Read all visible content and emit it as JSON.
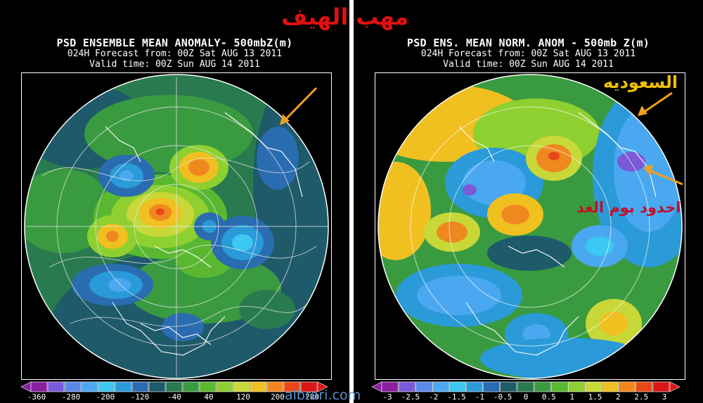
{
  "heading": "مهب الهيف",
  "watermark": "albrari.com",
  "left_panel": {
    "title_line1": "PSD ENSEMBLE MEAN ANOMALY- 500mbZ(m)",
    "title_line2": "024H Forecast from: 00Z Sat AUG 13 2011",
    "title_line3": "Valid time: 00Z Sun AUG 14 2011",
    "colorbar_ticks": [
      "-360",
      "-280",
      "-200",
      "-120",
      "-40",
      "40",
      "120",
      "200",
      "280"
    ]
  },
  "right_panel": {
    "title_line1": "PSD ENS. MEAN NORM. ANOM - 500mb Z(m)",
    "title_line2": "024H Forecast from: 00Z Sat AUG 13 2011",
    "title_line3": "Valid time: 00Z Sun AUG 14 2011",
    "colorbar_ticks": [
      "-3",
      "-2.5",
      "-2",
      "-1.5",
      "-1",
      "-0.5",
      "0",
      "0.5",
      "1",
      "1.5",
      "2",
      "2.5",
      "3"
    ]
  },
  "annotations": {
    "saudi_label": "السعوديه",
    "trough_label": "اخدود بوم الغد"
  },
  "colors": {
    "arrow": "#f0a020",
    "heading": "#e01010",
    "saudi_label": "#f0c000",
    "trough_label": "#c0102a"
  },
  "palette": [
    "#8a1ea0",
    "#7a5ad8",
    "#5a8ae8",
    "#4aa8f0",
    "#3cc8f0",
    "#2a9ad8",
    "#2a6cb0",
    "#1e5a6a",
    "#2a7a50",
    "#3a9a40",
    "#5ab830",
    "#8ed030",
    "#c8d838",
    "#f0c020",
    "#f08820",
    "#e84818",
    "#d81818"
  ]
}
